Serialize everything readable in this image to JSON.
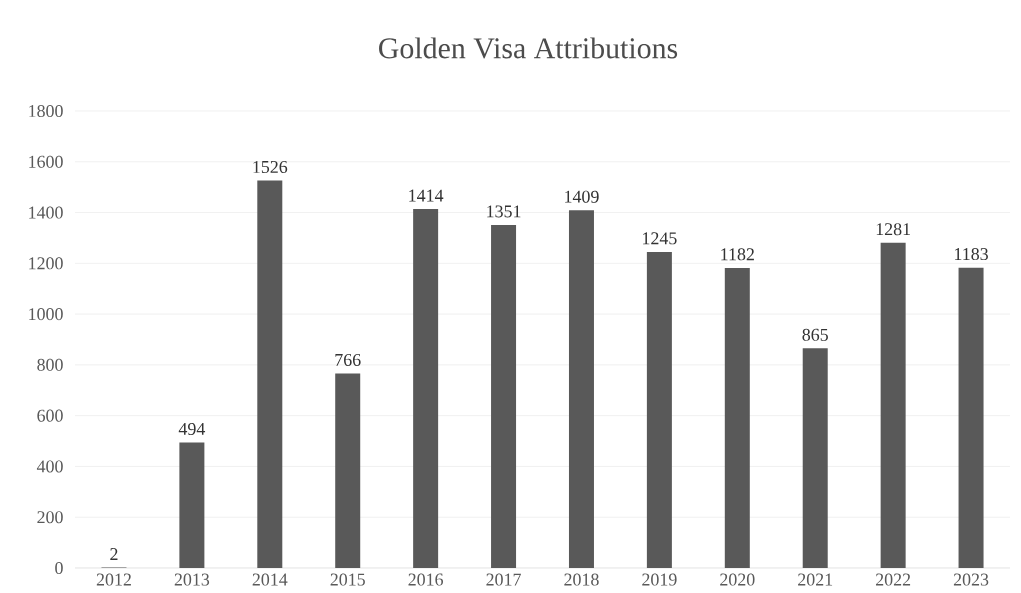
{
  "chart_data": {
    "type": "bar",
    "title": "Golden Visa Attributions",
    "categories": [
      "2012",
      "2013",
      "2014",
      "2015",
      "2016",
      "2017",
      "2018",
      "2019",
      "2020",
      "2021",
      "2022",
      "2023"
    ],
    "values": [
      2,
      494,
      1526,
      766,
      1414,
      1351,
      1409,
      1245,
      1182,
      865,
      1281,
      1183
    ],
    "color": "#595959",
    "ylim": [
      0,
      1800
    ],
    "yticks": [
      0,
      200,
      400,
      600,
      800,
      1000,
      1200,
      1400,
      1600,
      1800
    ],
    "grid": "y",
    "data_labels": true
  }
}
